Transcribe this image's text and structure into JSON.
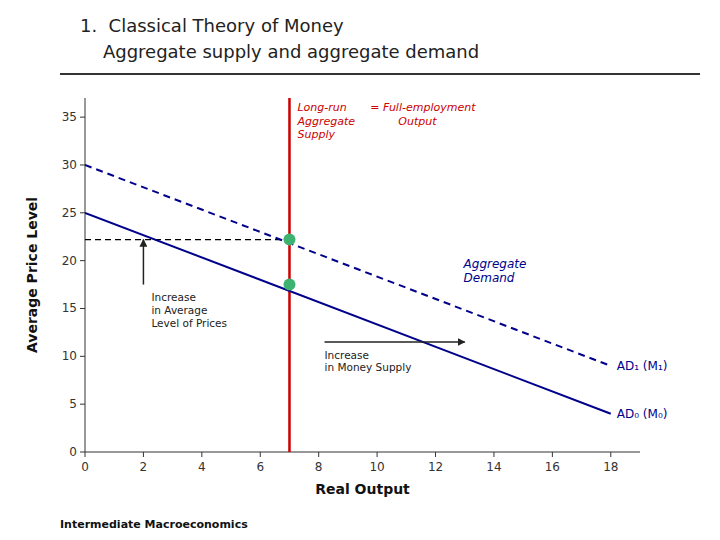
{
  "chart_data": {
    "type": "line",
    "title": "1.  Classical Theory of Money",
    "subtitle": "    Aggregate supply and aggregate demand",
    "x_label": "Real Output",
    "y_label": "Average Price Level",
    "footer": "Intermediate Macroeconomics",
    "xlim": [
      0,
      19
    ],
    "ylim": [
      0,
      37
    ],
    "xticks": [
      0,
      2,
      4,
      6,
      8,
      10,
      12,
      14,
      16,
      18
    ],
    "yticks": [
      0,
      5,
      10,
      15,
      20,
      25,
      30,
      35
    ],
    "series": [
      {
        "name": "AD₀ (M₀)",
        "type": "line",
        "line_style": "solid",
        "color": "#00008B",
        "x": [
          0,
          18
        ],
        "values": [
          25,
          4
        ]
      },
      {
        "name": "AD₁ (M₁)",
        "type": "line",
        "line_style": "dashed",
        "color": "#00008B",
        "x": [
          0,
          18
        ],
        "values": [
          30,
          9
        ]
      },
      {
        "type": "scatter",
        "marker": "circle",
        "color": "#3cb371",
        "x": [
          7,
          7
        ],
        "values": [
          17.5,
          22.2
        ]
      }
    ],
    "reference_lines": [
      {
        "axis": "x",
        "value": 7,
        "color": "#cc0000",
        "labels": [
          "Long-run\nAggregate\nSupply",
          "= Full-employment\n        Output"
        ]
      },
      {
        "axis": "y",
        "value": 22.2,
        "to": 7,
        "color": "#000000",
        "line_style": "dashed"
      }
    ],
    "arrows": [
      {
        "x": 2.0,
        "y0": 17.5,
        "y1": 22.2,
        "label": "Increase\nin Average\nLevel of Prices"
      },
      {
        "y": 11.5,
        "x0": 8.2,
        "x1": 13.0,
        "label": "Increase\nin Money Supply"
      }
    ],
    "annotations": [
      {
        "text": "Aggregate\nDemand",
        "color": "#00008B"
      }
    ]
  }
}
